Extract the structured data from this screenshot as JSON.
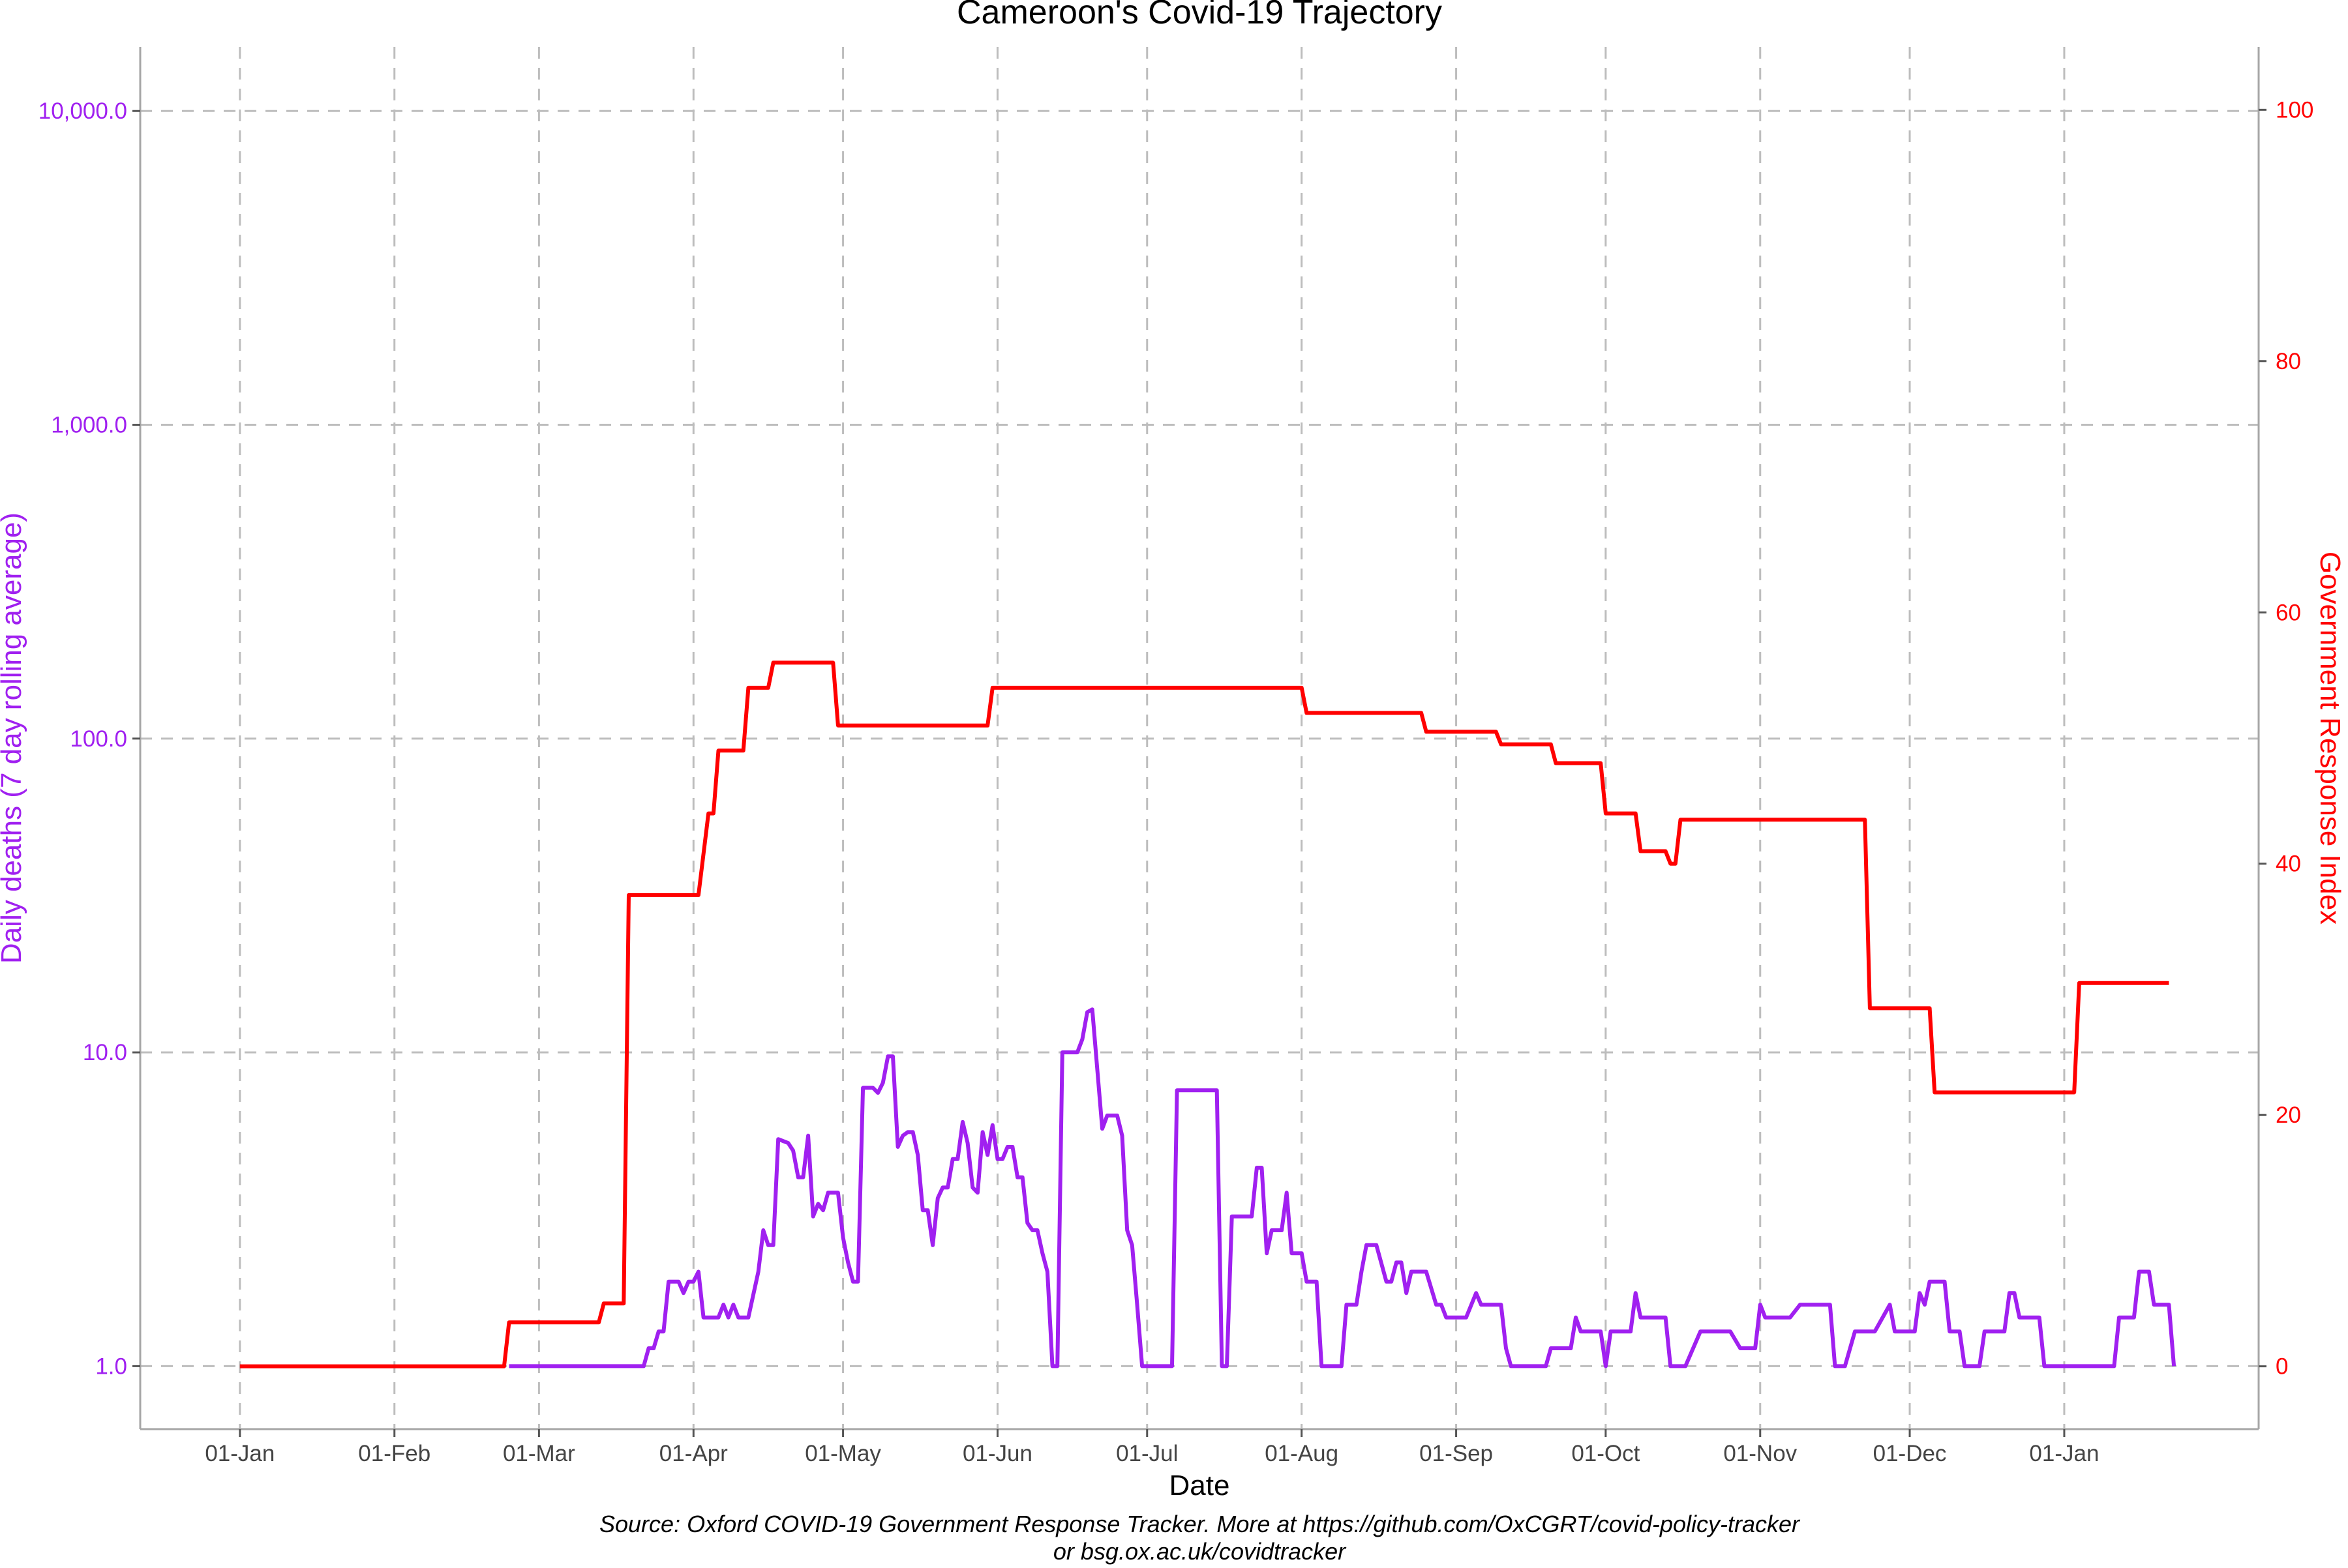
{
  "chart_data": {
    "type": "line",
    "title": "Cameroon's Covid-19 Trajectory",
    "xlabel": "Date",
    "ylabel_left": "Daily deaths (7 day rolling average)",
    "ylabel_right": "Government Response Index",
    "caption_line1": "Source: Oxford COVID-19 Government Response Tracker. More at https://github.com/OxCGRT/covid-policy-tracker",
    "caption_line2": "or bsg.ox.ac.uk/covidtracker",
    "left_axis": {
      "scale": "log10",
      "ticks": [
        1,
        10,
        100,
        1000,
        10000
      ],
      "tick_labels": [
        "1.0",
        "10.0",
        "100.0",
        "1,000.0",
        "10,000.0"
      ],
      "range": [
        0.63,
        16000
      ]
    },
    "right_axis": {
      "scale": "linear",
      "ticks": [
        0,
        20,
        40,
        60,
        80,
        100
      ],
      "tick_labels": [
        "0",
        "20",
        "40",
        "60",
        "80",
        "100"
      ],
      "range": [
        -5,
        105
      ]
    },
    "x_ticks": [
      "2020-01-01",
      "2020-02-01",
      "2020-03-01",
      "2020-04-01",
      "2020-05-01",
      "2020-06-01",
      "2020-07-01",
      "2020-08-01",
      "2020-09-01",
      "2020-10-01",
      "2020-11-01",
      "2020-12-01",
      "2021-01-01"
    ],
    "x_tick_labels": [
      "01-Jan",
      "01-Feb",
      "01-Mar",
      "01-Apr",
      "01-May",
      "01-Jun",
      "01-Jul",
      "01-Aug",
      "01-Sep",
      "01-Oct",
      "01-Nov",
      "01-Dec",
      "01-Jan"
    ],
    "x_range": [
      "2019-12-12",
      "2021-02-09"
    ],
    "grid": true,
    "colors": {
      "deaths": "#a020f0",
      "index": "#ff0000",
      "grid": "#bdbdbd",
      "axis": "#a6a6a6"
    },
    "series": [
      {
        "name": "Government Response Index",
        "axis": "right",
        "color": "#ff0000",
        "points": [
          [
            "2020-01-01",
            0
          ],
          [
            "2020-02-23",
            0
          ],
          [
            "2020-02-24",
            3.5
          ],
          [
            "2020-03-13",
            3.5
          ],
          [
            "2020-03-14",
            5
          ],
          [
            "2020-03-18",
            5
          ],
          [
            "2020-03-19",
            37.5
          ],
          [
            "2020-04-02",
            37.5
          ],
          [
            "2020-04-04",
            44
          ],
          [
            "2020-04-05",
            44
          ],
          [
            "2020-04-06",
            49
          ],
          [
            "2020-04-11",
            49
          ],
          [
            "2020-04-12",
            54
          ],
          [
            "2020-04-16",
            54
          ],
          [
            "2020-04-17",
            56
          ],
          [
            "2020-04-29",
            56
          ],
          [
            "2020-04-30",
            51
          ],
          [
            "2020-05-30",
            51
          ],
          [
            "2020-05-31",
            54
          ],
          [
            "2020-08-01",
            54
          ],
          [
            "2020-08-02",
            52
          ],
          [
            "2020-08-25",
            52
          ],
          [
            "2020-08-26",
            50.5
          ],
          [
            "2020-09-09",
            50.5
          ],
          [
            "2020-09-10",
            49.5
          ],
          [
            "2020-09-20",
            49.5
          ],
          [
            "2020-09-21",
            48
          ],
          [
            "2020-09-30",
            48
          ],
          [
            "2020-10-01",
            44
          ],
          [
            "2020-10-07",
            44
          ],
          [
            "2020-10-08",
            41
          ],
          [
            "2020-10-13",
            41
          ],
          [
            "2020-10-14",
            40
          ],
          [
            "2020-10-15",
            40
          ],
          [
            "2020-10-16",
            43.5
          ],
          [
            "2020-11-22",
            43.5
          ],
          [
            "2020-11-23",
            28.5
          ],
          [
            "2020-12-05",
            28.5
          ],
          [
            "2020-12-06",
            21.8
          ],
          [
            "2021-01-03",
            21.8
          ],
          [
            "2021-01-04",
            30.5
          ],
          [
            "2021-01-22",
            30.5
          ]
        ]
      },
      {
        "name": "Daily deaths (7 day rolling average)",
        "axis": "left",
        "color": "#a020f0",
        "points": [
          [
            "2020-02-24",
            1
          ],
          [
            "2020-03-22",
            1
          ],
          [
            "2020-03-23",
            1.14
          ],
          [
            "2020-03-24",
            1.14
          ],
          [
            "2020-03-25",
            1.29
          ],
          [
            "2020-03-26",
            1.29
          ],
          [
            "2020-03-27",
            1.86
          ],
          [
            "2020-03-29",
            1.86
          ],
          [
            "2020-03-30",
            1.71
          ],
          [
            "2020-03-31",
            1.86
          ],
          [
            "2020-04-01",
            1.86
          ],
          [
            "2020-04-02",
            2
          ],
          [
            "2020-04-03",
            1.43
          ],
          [
            "2020-04-06",
            1.43
          ],
          [
            "2020-04-07",
            1.57
          ],
          [
            "2020-04-08",
            1.43
          ],
          [
            "2020-04-09",
            1.57
          ],
          [
            "2020-04-10",
            1.43
          ],
          [
            "2020-04-12",
            1.43
          ],
          [
            "2020-04-14",
            2
          ],
          [
            "2020-04-15",
            2.71
          ],
          [
            "2020-04-16",
            2.43
          ],
          [
            "2020-04-17",
            2.43
          ],
          [
            "2020-04-18",
            5.29
          ],
          [
            "2020-04-20",
            5.14
          ],
          [
            "2020-04-21",
            4.86
          ],
          [
            "2020-04-22",
            4
          ],
          [
            "2020-04-23",
            4
          ],
          [
            "2020-04-24",
            5.43
          ],
          [
            "2020-04-25",
            3
          ],
          [
            "2020-04-26",
            3.29
          ],
          [
            "2020-04-27",
            3.14
          ],
          [
            "2020-04-28",
            3.57
          ],
          [
            "2020-04-30",
            3.57
          ],
          [
            "2020-05-01",
            2.57
          ],
          [
            "2020-05-02",
            2.14
          ],
          [
            "2020-05-03",
            1.86
          ],
          [
            "2020-05-04",
            1.86
          ],
          [
            "2020-05-05",
            7.71
          ],
          [
            "2020-05-07",
            7.71
          ],
          [
            "2020-05-08",
            7.43
          ],
          [
            "2020-05-09",
            8
          ],
          [
            "2020-05-10",
            9.71
          ],
          [
            "2020-05-11",
            9.71
          ],
          [
            "2020-05-12",
            5
          ],
          [
            "2020-05-13",
            5.43
          ],
          [
            "2020-05-14",
            5.57
          ],
          [
            "2020-05-15",
            5.57
          ],
          [
            "2020-05-16",
            4.71
          ],
          [
            "2020-05-17",
            3.14
          ],
          [
            "2020-05-18",
            3.14
          ],
          [
            "2020-05-19",
            2.43
          ],
          [
            "2020-05-20",
            3.43
          ],
          [
            "2020-05-21",
            3.71
          ],
          [
            "2020-05-22",
            3.71
          ],
          [
            "2020-05-23",
            4.57
          ],
          [
            "2020-05-24",
            4.57
          ],
          [
            "2020-05-25",
            6
          ],
          [
            "2020-05-26",
            5.14
          ],
          [
            "2020-05-27",
            3.71
          ],
          [
            "2020-05-28",
            3.57
          ],
          [
            "2020-05-29",
            5.57
          ],
          [
            "2020-05-30",
            4.71
          ],
          [
            "2020-05-31",
            5.86
          ],
          [
            "2020-06-01",
            4.57
          ],
          [
            "2020-06-02",
            4.57
          ],
          [
            "2020-06-03",
            5
          ],
          [
            "2020-06-04",
            5
          ],
          [
            "2020-06-05",
            4
          ],
          [
            "2020-06-06",
            4
          ],
          [
            "2020-06-07",
            2.86
          ],
          [
            "2020-06-08",
            2.71
          ],
          [
            "2020-06-09",
            2.71
          ],
          [
            "2020-06-10",
            2.29
          ],
          [
            "2020-06-11",
            2
          ],
          [
            "2020-06-12",
            1
          ],
          [
            "2020-06-13",
            1
          ],
          [
            "2020-06-14",
            10
          ],
          [
            "2020-06-17",
            10
          ],
          [
            "2020-06-18",
            11
          ],
          [
            "2020-06-19",
            13.43
          ],
          [
            "2020-06-20",
            13.71
          ],
          [
            "2020-06-22",
            5.71
          ],
          [
            "2020-06-23",
            6.29
          ],
          [
            "2020-06-25",
            6.29
          ],
          [
            "2020-06-26",
            5.43
          ],
          [
            "2020-06-27",
            2.71
          ],
          [
            "2020-06-28",
            2.43
          ],
          [
            "2020-06-29",
            1.57
          ],
          [
            "2020-06-30",
            1
          ],
          [
            "2020-07-06",
            1
          ],
          [
            "2020-07-07",
            7.57
          ],
          [
            "2020-07-15",
            7.57
          ],
          [
            "2020-07-16",
            1
          ],
          [
            "2020-07-17",
            1
          ],
          [
            "2020-07-18",
            3
          ],
          [
            "2020-07-22",
            3
          ],
          [
            "2020-07-23",
            4.29
          ],
          [
            "2020-07-24",
            4.29
          ],
          [
            "2020-07-25",
            2.29
          ],
          [
            "2020-07-26",
            2.71
          ],
          [
            "2020-07-28",
            2.71
          ],
          [
            "2020-07-29",
            3.57
          ],
          [
            "2020-07-30",
            2.29
          ],
          [
            "2020-08-01",
            2.29
          ],
          [
            "2020-08-02",
            1.86
          ],
          [
            "2020-08-04",
            1.86
          ],
          [
            "2020-08-05",
            1
          ],
          [
            "2020-08-09",
            1
          ],
          [
            "2020-08-10",
            1.57
          ],
          [
            "2020-08-12",
            1.57
          ],
          [
            "2020-08-13",
            2
          ],
          [
            "2020-08-14",
            2.43
          ],
          [
            "2020-08-16",
            2.43
          ],
          [
            "2020-08-18",
            1.86
          ],
          [
            "2020-08-19",
            1.86
          ],
          [
            "2020-08-20",
            2.14
          ],
          [
            "2020-08-21",
            2.14
          ],
          [
            "2020-08-22",
            1.71
          ],
          [
            "2020-08-23",
            2
          ],
          [
            "2020-08-26",
            2
          ],
          [
            "2020-08-28",
            1.57
          ],
          [
            "2020-08-29",
            1.57
          ],
          [
            "2020-08-30",
            1.43
          ],
          [
            "2020-09-03",
            1.43
          ],
          [
            "2020-09-05",
            1.71
          ],
          [
            "2020-09-06",
            1.57
          ],
          [
            "2020-09-10",
            1.57
          ],
          [
            "2020-09-11",
            1.14
          ],
          [
            "2020-09-12",
            1
          ],
          [
            "2020-09-19",
            1
          ],
          [
            "2020-09-20",
            1.14
          ],
          [
            "2020-09-24",
            1.14
          ],
          [
            "2020-09-25",
            1.43
          ],
          [
            "2020-09-26",
            1.29
          ],
          [
            "2020-09-30",
            1.29
          ],
          [
            "2020-10-01",
            1
          ],
          [
            "2020-10-02",
            1.29
          ],
          [
            "2020-10-06",
            1.29
          ],
          [
            "2020-10-07",
            1.71
          ],
          [
            "2020-10-08",
            1.43
          ],
          [
            "2020-10-13",
            1.43
          ],
          [
            "2020-10-14",
            1
          ],
          [
            "2020-10-17",
            1
          ],
          [
            "2020-10-20",
            1.29
          ],
          [
            "2020-10-26",
            1.29
          ],
          [
            "2020-10-28",
            1.14
          ],
          [
            "2020-10-31",
            1.14
          ],
          [
            "2020-11-01",
            1.57
          ],
          [
            "2020-11-02",
            1.43
          ],
          [
            "2020-11-07",
            1.43
          ],
          [
            "2020-11-09",
            1.57
          ],
          [
            "2020-11-15",
            1.57
          ],
          [
            "2020-11-16",
            1
          ],
          [
            "2020-11-18",
            1
          ],
          [
            "2020-11-20",
            1.29
          ],
          [
            "2020-11-24",
            1.29
          ],
          [
            "2020-11-27",
            1.57
          ],
          [
            "2020-11-28",
            1.29
          ],
          [
            "2020-12-02",
            1.29
          ],
          [
            "2020-12-03",
            1.71
          ],
          [
            "2020-12-04",
            1.57
          ],
          [
            "2020-12-05",
            1.86
          ],
          [
            "2020-12-08",
            1.86
          ],
          [
            "2020-12-09",
            1.29
          ],
          [
            "2020-12-11",
            1.29
          ],
          [
            "2020-12-12",
            1
          ],
          [
            "2020-12-15",
            1
          ],
          [
            "2020-12-16",
            1.29
          ],
          [
            "2020-12-20",
            1.29
          ],
          [
            "2020-12-21",
            1.71
          ],
          [
            "2020-12-22",
            1.71
          ],
          [
            "2020-12-23",
            1.43
          ],
          [
            "2020-12-27",
            1.43
          ],
          [
            "2020-12-28",
            1
          ],
          [
            "2021-01-11",
            1
          ],
          [
            "2021-01-12",
            1.43
          ],
          [
            "2021-01-15",
            1.43
          ],
          [
            "2021-01-16",
            2
          ],
          [
            "2021-01-18",
            2
          ],
          [
            "2021-01-19",
            1.57
          ],
          [
            "2021-01-22",
            1.57
          ],
          [
            "2021-01-23",
            1
          ]
        ]
      }
    ]
  }
}
